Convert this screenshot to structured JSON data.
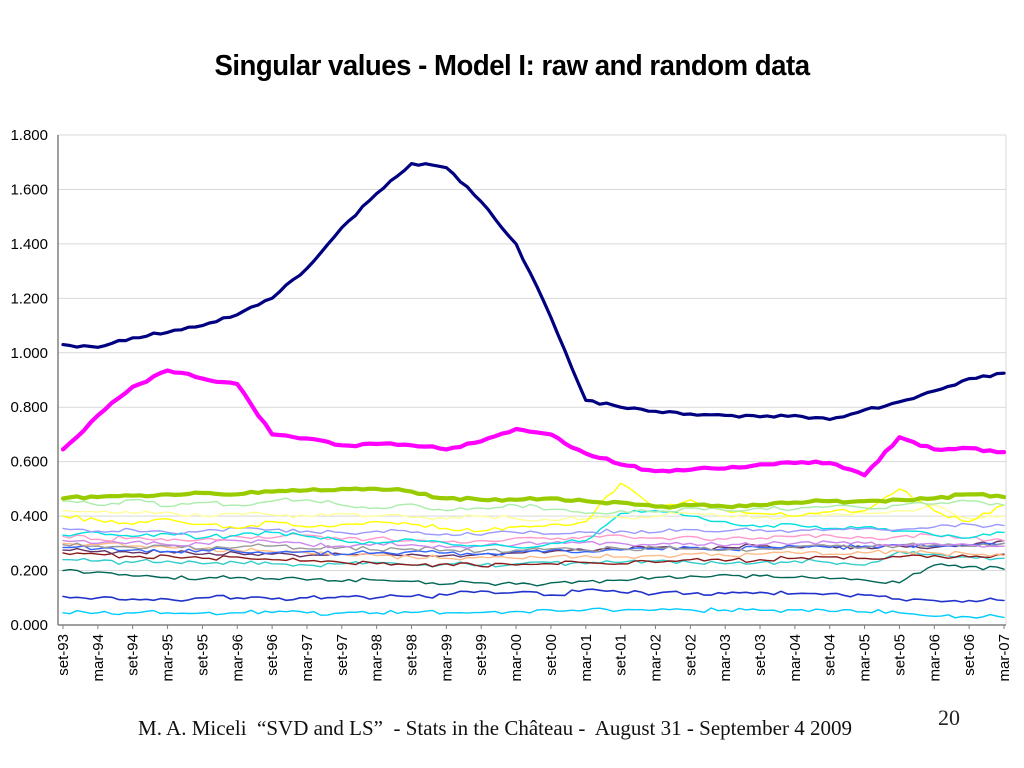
{
  "slide": {
    "title": "Singular values - Model I: raw and random data",
    "footer": "M. A. Miceli  “SVD and LS”  - Stats in the Château -  August 31 - September 4 2009",
    "page_number": "20"
  },
  "chart_data": {
    "type": "line",
    "title": "Singular values - Model I: raw and random data",
    "xlabel": "",
    "ylabel": "",
    "ylim": [
      0,
      1.8
    ],
    "grid": "horizontal",
    "legend": "none",
    "gridline_color": "#D9D9D9",
    "axis_color": "#808080",
    "y_tick_labels": [
      "0.000",
      "0.200",
      "0.400",
      "0.600",
      "0.800",
      "1.000",
      "1.200",
      "1.400",
      "1.600",
      "1.800"
    ],
    "x_tick_labels": [
      "set-93",
      "mar-94",
      "set-94",
      "mar-95",
      "set-95",
      "mar-96",
      "set-96",
      "mar-97",
      "set-97",
      "mar-98",
      "set-98",
      "mar-99",
      "set-99",
      "mar-00",
      "set-00",
      "mar-01",
      "set-01",
      "mar-02",
      "set-02",
      "mar-03",
      "set-03",
      "mar-04",
      "set-04",
      "mar-05",
      "set-05",
      "mar-06",
      "set-06",
      "mar-07"
    ],
    "series": [
      {
        "name": "s19-sky-blue",
        "color": "#00CCFF",
        "width": 1.4,
        "values": [
          0.045,
          0.045,
          0.044,
          0.045,
          0.044,
          0.045,
          0.046,
          0.045,
          0.044,
          0.045,
          0.046,
          0.045,
          0.046,
          0.05,
          0.055,
          0.055,
          0.054,
          0.055,
          0.056,
          0.055,
          0.054,
          0.055,
          0.05,
          0.048,
          0.045,
          0.032,
          0.03,
          0.028
        ]
      },
      {
        "name": "s18-royal-blue",
        "color": "#2233CC",
        "width": 1.6,
        "values": [
          0.105,
          0.1,
          0.095,
          0.095,
          0.1,
          0.1,
          0.095,
          0.1,
          0.105,
          0.1,
          0.105,
          0.11,
          0.125,
          0.12,
          0.11,
          0.13,
          0.12,
          0.115,
          0.115,
          0.115,
          0.12,
          0.115,
          0.115,
          0.11,
          0.095,
          0.09,
          0.09,
          0.09
        ]
      },
      {
        "name": "s17-dark-teal",
        "color": "#006655",
        "width": 1.4,
        "values": [
          0.2,
          0.195,
          0.18,
          0.175,
          0.17,
          0.175,
          0.17,
          0.165,
          0.16,
          0.165,
          0.16,
          0.15,
          0.155,
          0.15,
          0.155,
          0.16,
          0.165,
          0.175,
          0.18,
          0.185,
          0.18,
          0.175,
          0.17,
          0.165,
          0.155,
          0.22,
          0.215,
          0.205
        ]
      },
      {
        "name": "s16-teal",
        "color": "#33CCCC",
        "width": 1.4,
        "values": [
          0.24,
          0.235,
          0.23,
          0.235,
          0.225,
          0.23,
          0.225,
          0.22,
          0.225,
          0.23,
          0.22,
          0.225,
          0.22,
          0.225,
          0.23,
          0.225,
          0.23,
          0.235,
          0.23,
          0.225,
          0.23,
          0.235,
          0.23,
          0.22,
          0.27,
          0.26,
          0.25,
          0.245
        ]
      },
      {
        "name": "s15-dark-red",
        "color": "#8B1A1A",
        "width": 1.4,
        "values": [
          0.265,
          0.26,
          0.25,
          0.255,
          0.245,
          0.25,
          0.24,
          0.235,
          0.23,
          0.225,
          0.22,
          0.225,
          0.215,
          0.22,
          0.225,
          0.23,
          0.225,
          0.23,
          0.24,
          0.235,
          0.24,
          0.245,
          0.25,
          0.245,
          0.25,
          0.255,
          0.25,
          0.26
        ]
      },
      {
        "name": "s14-dark-purple",
        "color": "#663366",
        "width": 1.4,
        "values": [
          0.275,
          0.27,
          0.265,
          0.27,
          0.26,
          0.265,
          0.26,
          0.255,
          0.26,
          0.265,
          0.26,
          0.255,
          0.26,
          0.265,
          0.27,
          0.275,
          0.28,
          0.285,
          0.28,
          0.285,
          0.29,
          0.285,
          0.29,
          0.285,
          0.29,
          0.285,
          0.29,
          0.31
        ]
      },
      {
        "name": "s13-salmon",
        "color": "#FFBB88",
        "width": 1.4,
        "values": [
          0.3,
          0.295,
          0.29,
          0.285,
          0.28,
          0.275,
          0.27,
          0.265,
          0.26,
          0.255,
          0.25,
          0.245,
          0.25,
          0.245,
          0.25,
          0.255,
          0.25,
          0.255,
          0.26,
          0.255,
          0.26,
          0.265,
          0.26,
          0.265,
          0.27,
          0.265,
          0.26,
          0.255
        ]
      },
      {
        "name": "s12-medium-blue",
        "color": "#3366FF",
        "width": 1.4,
        "values": [
          0.285,
          0.28,
          0.275,
          0.27,
          0.275,
          0.27,
          0.265,
          0.27,
          0.26,
          0.265,
          0.27,
          0.265,
          0.26,
          0.27,
          0.275,
          0.27,
          0.275,
          0.28,
          0.285,
          0.28,
          0.285,
          0.29,
          0.285,
          0.29,
          0.295,
          0.29,
          0.295,
          0.3
        ]
      },
      {
        "name": "s11-gray",
        "color": "#999999",
        "width": 1.4,
        "values": [
          0.295,
          0.29,
          0.285,
          0.29,
          0.28,
          0.285,
          0.29,
          0.28,
          0.285,
          0.275,
          0.28,
          0.275,
          0.27,
          0.275,
          0.28,
          0.275,
          0.28,
          0.285,
          0.28,
          0.275,
          0.28,
          0.285,
          0.29,
          0.285,
          0.29,
          0.295,
          0.29,
          0.3
        ]
      },
      {
        "name": "s10-orchid",
        "color": "#CC88EE",
        "width": 1.4,
        "values": [
          0.31,
          0.3,
          0.305,
          0.295,
          0.3,
          0.31,
          0.305,
          0.295,
          0.29,
          0.3,
          0.295,
          0.285,
          0.29,
          0.295,
          0.3,
          0.305,
          0.3,
          0.295,
          0.3,
          0.29,
          0.295,
          0.3,
          0.305,
          0.3,
          0.295,
          0.3,
          0.295,
          0.29
        ]
      },
      {
        "name": "s09-pink",
        "color": "#FF99CC",
        "width": 1.4,
        "values": [
          0.325,
          0.315,
          0.32,
          0.31,
          0.315,
          0.325,
          0.32,
          0.33,
          0.315,
          0.32,
          0.31,
          0.305,
          0.31,
          0.32,
          0.315,
          0.325,
          0.33,
          0.32,
          0.325,
          0.315,
          0.32,
          0.325,
          0.33,
          0.32,
          0.325,
          0.33,
          0.32,
          0.31
        ]
      },
      {
        "name": "s08-cyan",
        "color": "#00E0E0",
        "width": 1.4,
        "values": [
          0.33,
          0.34,
          0.325,
          0.335,
          0.32,
          0.33,
          0.34,
          0.325,
          0.31,
          0.3,
          0.315,
          0.3,
          0.29,
          0.285,
          0.3,
          0.31,
          0.41,
          0.42,
          0.4,
          0.38,
          0.36,
          0.37,
          0.355,
          0.36,
          0.345,
          0.33,
          0.32,
          0.34
        ]
      },
      {
        "name": "s07-periwinkle",
        "color": "#9999FF",
        "width": 1.4,
        "values": [
          0.355,
          0.345,
          0.35,
          0.34,
          0.345,
          0.355,
          0.35,
          0.345,
          0.34,
          0.345,
          0.34,
          0.335,
          0.33,
          0.34,
          0.335,
          0.34,
          0.345,
          0.34,
          0.35,
          0.345,
          0.35,
          0.345,
          0.35,
          0.355,
          0.35,
          0.36,
          0.37,
          0.365
        ]
      },
      {
        "name": "s06-pale-yellow",
        "color": "#FFFF99",
        "width": 1.4,
        "values": [
          0.42,
          0.415,
          0.41,
          0.415,
          0.4,
          0.41,
          0.405,
          0.4,
          0.41,
          0.4,
          0.395,
          0.39,
          0.4,
          0.39,
          0.385,
          0.39,
          0.395,
          0.4,
          0.41,
          0.4,
          0.395,
          0.4,
          0.405,
          0.41,
          0.42,
          0.44,
          0.39,
          0.4
        ]
      },
      {
        "name": "s05-yellow",
        "color": "#FFFF00",
        "width": 1.4,
        "values": [
          0.4,
          0.385,
          0.37,
          0.39,
          0.37,
          0.355,
          0.38,
          0.36,
          0.37,
          0.38,
          0.37,
          0.355,
          0.345,
          0.36,
          0.37,
          0.38,
          0.52,
          0.43,
          0.46,
          0.42,
          0.41,
          0.4,
          0.415,
          0.42,
          0.5,
          0.42,
          0.38,
          0.44
        ]
      },
      {
        "name": "s04-pale-green",
        "color": "#AAEDAA",
        "width": 1.4,
        "values": [
          0.455,
          0.44,
          0.46,
          0.435,
          0.45,
          0.44,
          0.455,
          0.46,
          0.44,
          0.43,
          0.445,
          0.42,
          0.43,
          0.44,
          0.425,
          0.41,
          0.42,
          0.415,
          0.43,
          0.42,
          0.43,
          0.425,
          0.435,
          0.43,
          0.44,
          0.445,
          0.455,
          0.44
        ]
      },
      {
        "name": "s03-olive",
        "color": "#99CC00",
        "width": 4.2,
        "values": [
          0.465,
          0.47,
          0.475,
          0.48,
          0.485,
          0.48,
          0.49,
          0.495,
          0.5,
          0.5,
          0.49,
          0.465,
          0.46,
          0.46,
          0.465,
          0.455,
          0.45,
          0.435,
          0.44,
          0.435,
          0.44,
          0.45,
          0.455,
          0.455,
          0.46,
          0.465,
          0.48,
          0.47
        ]
      },
      {
        "name": "s02-magenta",
        "color": "#FF00FF",
        "width": 4.2,
        "values": [
          0.645,
          0.77,
          0.875,
          0.935,
          0.905,
          0.885,
          0.7,
          0.685,
          0.66,
          0.665,
          0.66,
          0.645,
          0.675,
          0.72,
          0.7,
          0.63,
          0.59,
          0.565,
          0.57,
          0.575,
          0.59,
          0.595,
          0.595,
          0.55,
          0.69,
          0.645,
          0.65,
          0.635
        ]
      },
      {
        "name": "s01-navy",
        "color": "#000080",
        "width": 3.2,
        "values": [
          1.03,
          1.02,
          1.055,
          1.075,
          1.1,
          1.14,
          1.2,
          1.31,
          1.46,
          1.585,
          1.695,
          1.68,
          1.555,
          1.4,
          1.13,
          0.825,
          0.8,
          0.785,
          0.775,
          0.77,
          0.765,
          0.77,
          0.755,
          0.79,
          0.82,
          0.86,
          0.905,
          0.925
        ]
      }
    ]
  }
}
